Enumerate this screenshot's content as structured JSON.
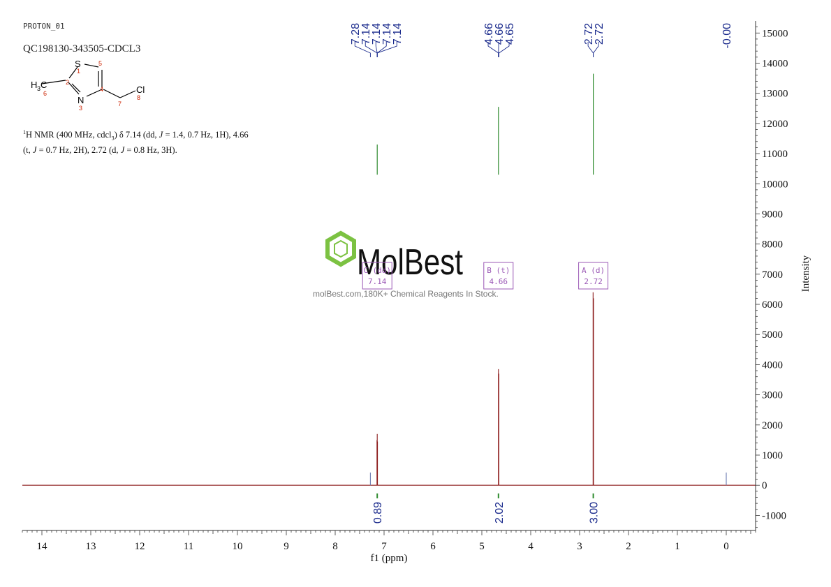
{
  "header": {
    "experiment": "PROTON_01",
    "sample_id": "QC198130-343505-CDCL3"
  },
  "structure": {
    "atoms": {
      "s": "S",
      "n": "N",
      "cl": "Cl",
      "methyl_h": "H",
      "methyl_sub": "3",
      "methyl_c": "C"
    },
    "numbers": [
      "1",
      "2",
      "3",
      "4",
      "5",
      "6",
      "7",
      "8"
    ]
  },
  "nmr_description": {
    "sup": "1",
    "line1_a": "H NMR (400 MHz, cdcl",
    "line1_sub": "3",
    "line1_b": ") δ 7.14 (dd, ",
    "j": "J",
    "line1_c": " = 1.4, 0.7 Hz, 1H), 4.66",
    "line2_a": "(t, ",
    "line2_b": " = 0.7 Hz, 2H), 2.72 (d, ",
    "line2_c": " = 0.8 Hz, 3H)."
  },
  "watermark": {
    "brand": "MolBest",
    "tagline": "molBest.com,180K+ Chemical Reagents In Stock."
  },
  "chart_data": {
    "type": "line",
    "xlabel": "f1 (ppm)",
    "ylabel": "Intensity",
    "xlim": [
      14.4,
      -0.6
    ],
    "ylim": [
      -1500,
      15400
    ],
    "x_ticks": [
      14,
      13,
      12,
      11,
      10,
      9,
      8,
      7,
      6,
      5,
      4,
      3,
      2,
      1,
      0
    ],
    "y_ticks": [
      15000,
      14000,
      13000,
      12000,
      11000,
      10000,
      9000,
      8000,
      7000,
      6000,
      5000,
      4000,
      3000,
      2000,
      1000,
      0,
      -1000
    ],
    "peaks": [
      {
        "ppm": 7.28,
        "height": 420
      },
      {
        "ppm": 7.145,
        "height": 1500
      },
      {
        "ppm": 7.14,
        "height": 1700
      },
      {
        "ppm": 7.135,
        "height": 1450
      },
      {
        "ppm": 4.66,
        "height": 3850
      },
      {
        "ppm": 4.652,
        "height": 3700
      },
      {
        "ppm": 2.724,
        "height": 6400
      },
      {
        "ppm": 2.716,
        "height": 6200
      },
      {
        "ppm": 0.0,
        "height": 420
      }
    ],
    "peak_labels": [
      {
        "group": "7.14 group",
        "items": [
          {
            "text": "7.28",
            "ppm": 7.28
          },
          {
            "text": "7.14",
            "ppm": 7.14
          },
          {
            "text": "7.14",
            "ppm": 7.14
          },
          {
            "text": "7.14",
            "ppm": 7.14
          },
          {
            "text": "7.14",
            "ppm": 7.14
          }
        ]
      },
      {
        "group": "4.66 group",
        "items": [
          {
            "text": "4.66",
            "ppm": 4.66
          },
          {
            "text": "4.66",
            "ppm": 4.66
          },
          {
            "text": "4.65",
            "ppm": 4.65
          }
        ]
      },
      {
        "group": "2.72 group",
        "items": [
          {
            "text": "2.72",
            "ppm": 2.72
          },
          {
            "text": "2.72",
            "ppm": 2.72
          }
        ]
      },
      {
        "group": "0.00",
        "items": [
          {
            "text": "-0.00",
            "ppm": 0.0
          }
        ]
      }
    ],
    "multiplets": [
      {
        "label": "C (dd)",
        "shift": "7.14",
        "ppm": 7.14
      },
      {
        "label": "B (t)",
        "shift": "4.66",
        "ppm": 4.66
      },
      {
        "label": "A (d)",
        "shift": "2.72",
        "ppm": 2.72
      }
    ],
    "integrals": [
      {
        "ppm": 7.14,
        "value": "0.89",
        "top": 11300
      },
      {
        "ppm": 4.66,
        "value": "2.02",
        "top": 12550
      },
      {
        "ppm": 2.72,
        "value": "3.00",
        "top": 13650
      }
    ],
    "colors": {
      "spectrum": "#8b1a1a",
      "peak_label": "#1a2a8c",
      "integral": "#2e8b2e",
      "multiplet": "#9b59b6",
      "watermark": "#7cc242"
    }
  }
}
